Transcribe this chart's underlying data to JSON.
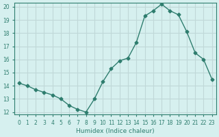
{
  "x": [
    0,
    1,
    2,
    3,
    4,
    5,
    6,
    7,
    8,
    9,
    10,
    11,
    12,
    13,
    14,
    15,
    16,
    17,
    18,
    19,
    20,
    21,
    22,
    23
  ],
  "y": [
    14.2,
    14.0,
    13.7,
    13.5,
    13.3,
    13.0,
    12.5,
    12.2,
    12.0,
    13.0,
    14.3,
    15.3,
    15.9,
    16.1,
    17.3,
    19.3,
    19.7,
    20.2,
    19.7,
    19.4,
    18.1,
    16.5,
    16.0,
    14.5
  ],
  "xlabel": "Humidex (Indice chaleur)",
  "ylim": [
    12,
    20
  ],
  "xlim": [
    0,
    23
  ],
  "yticks": [
    12,
    13,
    14,
    15,
    16,
    17,
    18,
    19,
    20
  ],
  "xticks": [
    0,
    1,
    2,
    3,
    4,
    5,
    6,
    7,
    8,
    9,
    10,
    11,
    12,
    13,
    14,
    15,
    16,
    17,
    18,
    19,
    20,
    21,
    22,
    23
  ],
  "line_color": "#2e7d6e",
  "marker_color": "#2e7d6e",
  "bg_color": "#d6f0ef",
  "grid_color": "#c0d8d8",
  "text_color": "#2e7d6e"
}
